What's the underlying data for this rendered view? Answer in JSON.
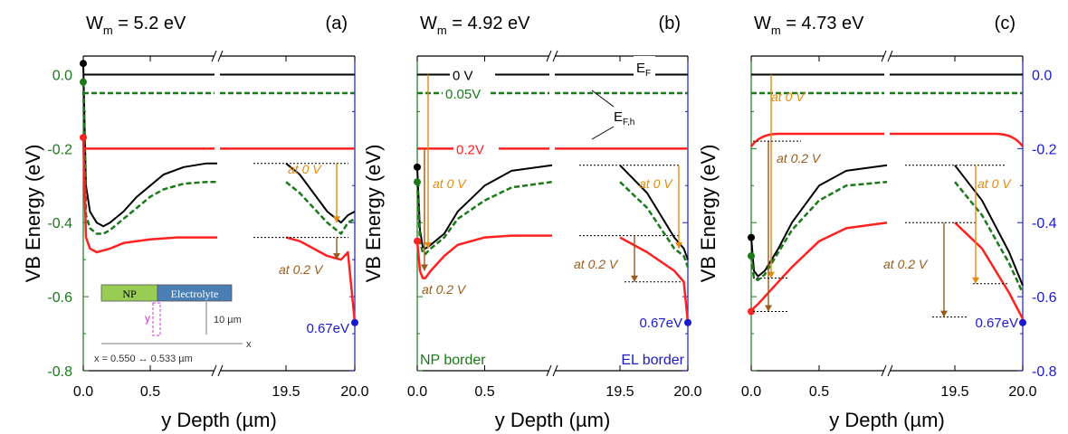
{
  "colors": {
    "black": "#000000",
    "green": "#1a7a1a",
    "red": "#ff2020",
    "orange": "#e08a10",
    "brown": "#9a5a1a",
    "blue": "#1a1acc",
    "magenta": "#cc33cc",
    "np_box": "#99cc55",
    "el_box": "#4a7fb5"
  },
  "chart_data": [
    {
      "type": "line",
      "panel": "(a)",
      "title": "W_m = 5.2 eV",
      "title_main": "W",
      "title_sub": "m",
      "title_rest": " = 5.2 eV",
      "panel_label": "(a)",
      "xlabel": "y Depth (µm)",
      "ylabel": "VB Energy  (eV)",
      "xticks_left": [
        "0.0",
        "0.5"
      ],
      "xticks_right": [
        "19.5",
        "20.0"
      ],
      "ylim": [
        -0.8,
        0.05
      ],
      "yticks": [
        "0.0",
        "-0.2",
        "-0.4",
        "-0.6",
        "-0.8"
      ],
      "series": [
        {
          "style": "black-solid",
          "fermi": 0.0,
          "x": [
            0,
            0.02,
            0.05,
            0.1,
            0.15,
            0.2,
            0.3,
            0.4,
            0.5,
            0.6,
            0.75,
            0.92,
            1.0,
            19.5,
            19.6,
            19.7,
            19.8,
            19.9,
            19.95,
            20.0
          ],
          "values": [
            0.03,
            -0.3,
            -0.37,
            -0.4,
            -0.41,
            -0.4,
            -0.37,
            -0.33,
            -0.3,
            -0.27,
            -0.25,
            -0.24,
            -0.24,
            -0.24,
            -0.27,
            -0.32,
            -0.37,
            -0.4,
            -0.38,
            -0.37
          ]
        },
        {
          "style": "green-dashed",
          "fermi": -0.05,
          "x": [
            0,
            0.02,
            0.05,
            0.1,
            0.15,
            0.2,
            0.3,
            0.4,
            0.5,
            0.6,
            0.75,
            0.92,
            1.0,
            19.5,
            19.6,
            19.7,
            19.8,
            19.9,
            19.95,
            20.0
          ],
          "values": [
            -0.02,
            -0.38,
            -0.415,
            -0.43,
            -0.43,
            -0.42,
            -0.39,
            -0.36,
            -0.33,
            -0.31,
            -0.295,
            -0.29,
            -0.29,
            -0.29,
            -0.32,
            -0.36,
            -0.4,
            -0.43,
            -0.4,
            -0.39
          ]
        },
        {
          "style": "red-solid",
          "fermi": -0.2,
          "x": [
            0,
            0.02,
            0.05,
            0.1,
            0.2,
            0.3,
            0.5,
            0.7,
            1.0,
            19.5,
            19.6,
            19.7,
            19.8,
            19.9,
            19.95,
            20.0
          ],
          "values": [
            -0.17,
            -0.44,
            -0.47,
            -0.48,
            -0.47,
            -0.455,
            -0.445,
            -0.44,
            -0.44,
            -0.44,
            -0.45,
            -0.47,
            -0.49,
            -0.5,
            -0.48,
            -0.67
          ]
        }
      ],
      "annotations": [
        "at 0 V",
        "at 0.2 V",
        "0.67eV"
      ],
      "inset": {
        "np_label": "NP",
        "el_label": "Electrolyte",
        "y_label": "y",
        "depth_label": "10 µm",
        "x_label": "x",
        "bottom_label": "x = 0.550 ↔ 0.533 µm"
      }
    },
    {
      "type": "line",
      "panel": "(b)",
      "title": "W_m = 4.92 eV",
      "title_main": "W",
      "title_sub": "m",
      "title_rest": " = 4.92 eV",
      "panel_label": "(b)",
      "xlabel": "y Depth (µm)",
      "ylabel": "VB Energy  (eV)",
      "xticks_left": [
        "0.0",
        "0.5"
      ],
      "xticks_right": [
        "19.5",
        "20.0"
      ],
      "ylim": [
        -0.8,
        0.05
      ],
      "series": [
        {
          "style": "black-solid",
          "fermi": 0.0,
          "x": [
            0,
            0.02,
            0.04,
            0.06,
            0.1,
            0.2,
            0.3,
            0.5,
            0.7,
            1.0,
            19.5,
            19.7,
            19.9,
            19.97,
            20.0
          ],
          "values": [
            -0.25,
            -0.42,
            -0.465,
            -0.47,
            -0.46,
            -0.43,
            -0.37,
            -0.3,
            -0.26,
            -0.245,
            -0.245,
            -0.32,
            -0.44,
            -0.47,
            -0.5
          ]
        },
        {
          "style": "green-dashed",
          "fermi": -0.05,
          "x": [
            0,
            0.02,
            0.04,
            0.06,
            0.1,
            0.2,
            0.3,
            0.5,
            0.7,
            1.0,
            19.5,
            19.7,
            19.9,
            19.97,
            20.0
          ],
          "values": [
            -0.29,
            -0.45,
            -0.48,
            -0.485,
            -0.47,
            -0.44,
            -0.39,
            -0.34,
            -0.305,
            -0.29,
            -0.29,
            -0.36,
            -0.47,
            -0.49,
            -0.52
          ]
        },
        {
          "style": "red-solid",
          "fermi": -0.2,
          "x": [
            0,
            0.02,
            0.04,
            0.06,
            0.1,
            0.2,
            0.3,
            0.5,
            0.7,
            1.0,
            19.5,
            19.7,
            19.9,
            19.97,
            20.0
          ],
          "values": [
            -0.45,
            -0.53,
            -0.55,
            -0.55,
            -0.53,
            -0.49,
            -0.46,
            -0.44,
            -0.435,
            -0.435,
            -0.44,
            -0.48,
            -0.53,
            -0.56,
            -0.67
          ]
        }
      ],
      "annotations": [
        "0 V",
        "0.05V",
        "0.2V",
        "E",
        "F",
        "E",
        "F,h",
        "at 0 V",
        "at 0 V",
        "at 0.2 V",
        "at 0.2 V",
        "0.67eV",
        "NP border",
        "EL border"
      ]
    },
    {
      "type": "line",
      "panel": "(c)",
      "title": "W_m = 4.73 eV",
      "title_main": "W",
      "title_sub": "m",
      "title_rest": " = 4.73 eV",
      "panel_label": "(c)",
      "xlabel": "y Depth (µm)",
      "ylabel": "VB Energy  (eV)",
      "xticks_left": [
        "0.0",
        "0.5"
      ],
      "xticks_right": [
        "19.5",
        "20.0"
      ],
      "ylim": [
        -0.8,
        0.05
      ],
      "yticks": [
        "0.0",
        "-0.2",
        "-0.4",
        "-0.6",
        "-0.8"
      ],
      "series": [
        {
          "style": "black-solid",
          "fermi": 0.0,
          "x": [
            0,
            0.02,
            0.05,
            0.1,
            0.2,
            0.3,
            0.5,
            0.7,
            1.0,
            19.5,
            19.7,
            19.9,
            20.0
          ],
          "values": [
            -0.44,
            -0.53,
            -0.545,
            -0.53,
            -0.47,
            -0.4,
            -0.3,
            -0.26,
            -0.245,
            -0.245,
            -0.34,
            -0.48,
            -0.57
          ]
        },
        {
          "style": "green-dashed",
          "fermi": -0.05,
          "x": [
            0,
            0.02,
            0.05,
            0.1,
            0.2,
            0.3,
            0.5,
            0.7,
            1.0,
            19.5,
            19.7,
            19.9,
            20.0
          ],
          "values": [
            -0.49,
            -0.55,
            -0.555,
            -0.54,
            -0.48,
            -0.42,
            -0.34,
            -0.3,
            -0.29,
            -0.29,
            -0.38,
            -0.51,
            -0.59
          ]
        },
        {
          "style": "red-solid",
          "fermi": -0.16,
          "x": [
            0,
            0.02,
            0.05,
            0.1,
            0.2,
            0.3,
            0.5,
            0.7,
            1.0,
            19.5,
            19.7,
            19.9,
            20.0
          ],
          "values": [
            -0.64,
            -0.63,
            -0.62,
            -0.6,
            -0.56,
            -0.52,
            -0.45,
            -0.415,
            -0.4,
            -0.4,
            -0.47,
            -0.59,
            -0.66
          ]
        }
      ],
      "annotations": [
        "at 0 V",
        "at 0.2 V",
        "at 0 V",
        "at 0.2 V",
        "0.67eV"
      ],
      "right_yticks": [
        "0.0",
        "-0.2",
        "-0.4",
        "-0.6",
        "-0.8"
      ]
    }
  ]
}
